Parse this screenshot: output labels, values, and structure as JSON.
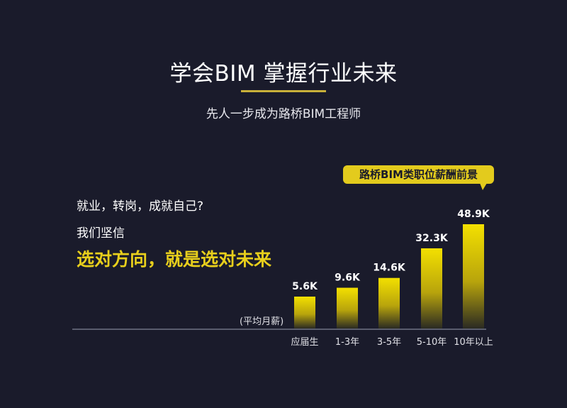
{
  "header": {
    "title": "学会BIM  掌握行业未来",
    "subtitle": "先人一步成为路桥BIM工程师"
  },
  "left_text": {
    "question": "就业，转岗，成就自己?",
    "belief": "我们坚信",
    "slogan": "选对方向，就是选对未来"
  },
  "colors": {
    "background": "#1a1b2b",
    "accent": "#e3cb1d",
    "bar_top": "#f3e000"
  },
  "chart_data": {
    "type": "bar",
    "title": "路桥BIM类职位薪酬前景",
    "ylabel": "(平均月薪)",
    "categories": [
      "应届生",
      "1-3年",
      "3-5年",
      "5-10年",
      "10年以上"
    ],
    "values": [
      5.6,
      9.6,
      14.6,
      32.3,
      48.9
    ],
    "data_labels": [
      "5.6K",
      "9.6K",
      "14.6K",
      "32.3K",
      "48.9K"
    ],
    "unit": "K",
    "grid": false
  }
}
